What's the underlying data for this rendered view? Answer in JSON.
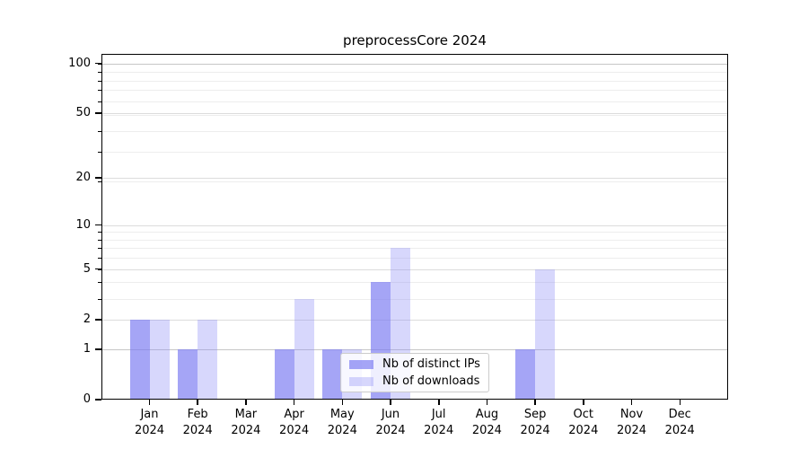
{
  "chart_data": {
    "type": "bar",
    "title": "preprocessCore 2024",
    "categories": [
      "Jan",
      "Feb",
      "Mar",
      "Apr",
      "May",
      "Jun",
      "Jul",
      "Aug",
      "Sep",
      "Oct",
      "Nov",
      "Dec"
    ],
    "year": "2024",
    "series": [
      {
        "name": "Nb of distinct IPs",
        "color": "rgba(122,122,242,0.68)",
        "color_hex": "#a5a5f5",
        "values": [
          2,
          1,
          0,
          1,
          1,
          4,
          0,
          0,
          1,
          0,
          0,
          0
        ]
      },
      {
        "name": "Nb of downloads",
        "color": "rgba(140,140,245,0.35)",
        "color_hex": "#d7d7fa",
        "values": [
          2,
          2,
          0,
          3,
          1,
          7,
          0,
          0,
          5,
          0,
          0,
          0
        ]
      }
    ],
    "y_ticks": [
      0,
      1,
      2,
      5,
      10,
      20,
      50,
      100
    ],
    "y_scale": "log10(1+v)",
    "ylim": [
      0,
      113
    ],
    "xlabel": "",
    "ylabel": "",
    "grid": true,
    "legend_position": "lower-center"
  }
}
